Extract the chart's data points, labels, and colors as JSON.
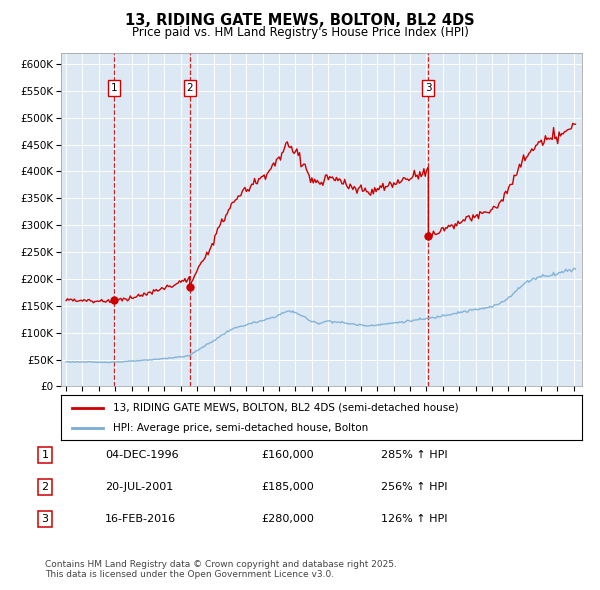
{
  "title": "13, RIDING GATE MEWS, BOLTON, BL2 4DS",
  "subtitle": "Price paid vs. HM Land Registry's House Price Index (HPI)",
  "legend_line1": "13, RIDING GATE MEWS, BOLTON, BL2 4DS (semi-detached house)",
  "legend_line2": "HPI: Average price, semi-detached house, Bolton",
  "footer": "Contains HM Land Registry data © Crown copyright and database right 2025.\nThis data is licensed under the Open Government Licence v3.0.",
  "transactions": [
    {
      "num": 1,
      "date": "04-DEC-1996",
      "year": 1996.92,
      "price": 160000,
      "hpi_pct": "285% ↑ HPI"
    },
    {
      "num": 2,
      "date": "20-JUL-2001",
      "year": 2001.55,
      "price": 185000,
      "hpi_pct": "256% ↑ HPI"
    },
    {
      "num": 3,
      "date": "16-FEB-2016",
      "year": 2016.12,
      "price": 280000,
      "hpi_pct": "126% ↑ HPI"
    }
  ],
  "red_line_color": "#cc0000",
  "blue_line_color": "#7aadd4",
  "plot_bg_color": "#dce9f5",
  "grid_color": "#ffffff",
  "dashed_line_color": "#cc0000",
  "marker_color": "#cc0000",
  "ylim": [
    0,
    620000
  ],
  "yticks": [
    0,
    50000,
    100000,
    150000,
    200000,
    250000,
    300000,
    350000,
    400000,
    450000,
    500000,
    550000,
    600000
  ],
  "xlim_left": 1993.7,
  "xlim_right": 2025.5,
  "hpi_base_points_blue": [
    [
      1994.0,
      46000
    ],
    [
      1995.0,
      45500
    ],
    [
      1996.0,
      45000
    ],
    [
      1997.0,
      45500
    ],
    [
      1998.0,
      47000
    ],
    [
      1999.0,
      49000
    ],
    [
      2000.0,
      52000
    ],
    [
      2001.0,
      55000
    ],
    [
      2001.5,
      57000
    ],
    [
      2002.0,
      67000
    ],
    [
      2003.0,
      85000
    ],
    [
      2004.0,
      105000
    ],
    [
      2005.0,
      115000
    ],
    [
      2006.0,
      122000
    ],
    [
      2007.0,
      133000
    ],
    [
      2007.5,
      140000
    ],
    [
      2008.0,
      138000
    ],
    [
      2008.5,
      130000
    ],
    [
      2009.0,
      120000
    ],
    [
      2009.5,
      118000
    ],
    [
      2010.0,
      122000
    ],
    [
      2010.5,
      120000
    ],
    [
      2011.0,
      118000
    ],
    [
      2011.5,
      116000
    ],
    [
      2012.0,
      114000
    ],
    [
      2012.5,
      113000
    ],
    [
      2013.0,
      115000
    ],
    [
      2013.5,
      116000
    ],
    [
      2014.0,
      118000
    ],
    [
      2014.5,
      120000
    ],
    [
      2015.0,
      122000
    ],
    [
      2015.5,
      124000
    ],
    [
      2016.0,
      126000
    ],
    [
      2016.5,
      128000
    ],
    [
      2017.0,
      132000
    ],
    [
      2017.5,
      135000
    ],
    [
      2018.0,
      138000
    ],
    [
      2018.5,
      140000
    ],
    [
      2019.0,
      143000
    ],
    [
      2019.5,
      145000
    ],
    [
      2020.0,
      148000
    ],
    [
      2020.5,
      155000
    ],
    [
      2021.0,
      165000
    ],
    [
      2021.5,
      178000
    ],
    [
      2022.0,
      192000
    ],
    [
      2022.5,
      200000
    ],
    [
      2023.0,
      205000
    ],
    [
      2023.5,
      207000
    ],
    [
      2024.0,
      210000
    ],
    [
      2024.5,
      215000
    ],
    [
      2025.0,
      218000
    ]
  ],
  "sale_years": [
    1996.92,
    2001.55,
    2016.12
  ],
  "sale_prices": [
    160000,
    185000,
    280000
  ],
  "sale_labels": [
    "1",
    "2",
    "3"
  ]
}
